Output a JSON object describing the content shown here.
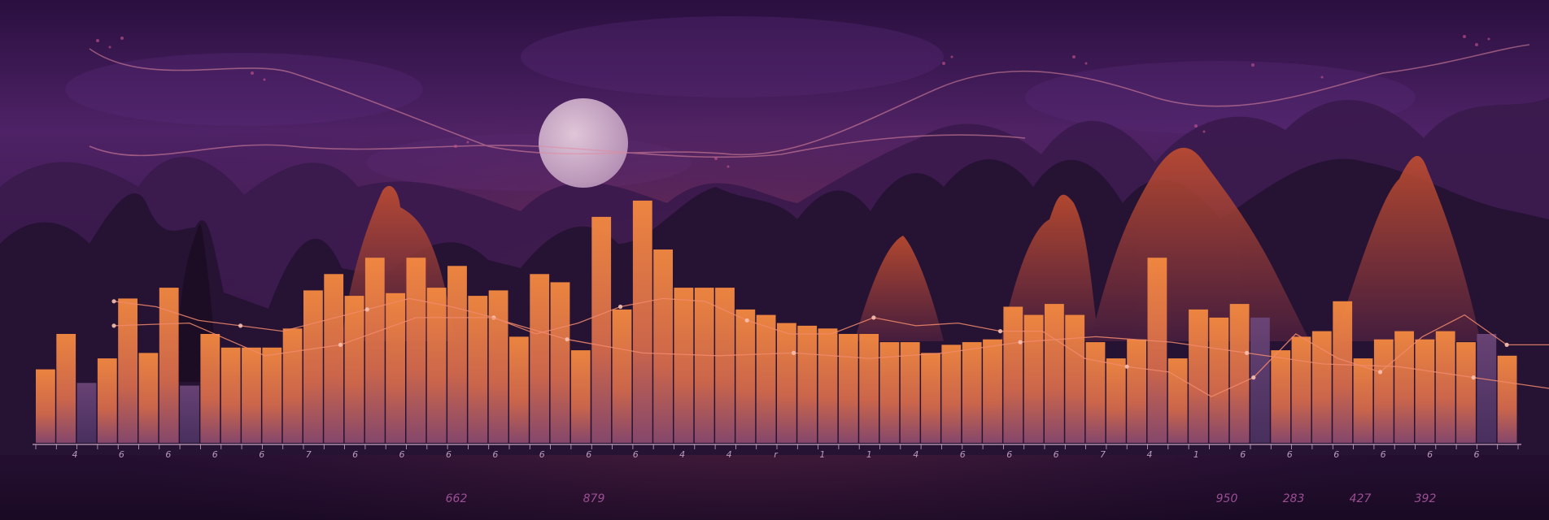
{
  "chart_data": {
    "type": "bar",
    "title": "",
    "xlabel": "",
    "ylabel": "",
    "ylim": [
      0,
      100
    ],
    "grid": false,
    "legend": "none",
    "values": [
      27,
      40,
      22,
      31,
      53,
      33,
      57,
      21,
      40,
      35,
      35,
      35,
      42,
      56,
      62,
      54,
      68,
      55,
      68,
      57,
      65,
      54,
      56,
      39,
      62,
      59,
      34,
      83,
      49,
      89,
      71,
      57,
      57,
      57,
      49,
      47,
      44,
      43,
      42,
      40,
      40,
      37,
      37,
      33,
      36,
      37,
      38,
      50,
      47,
      51,
      47,
      37,
      31,
      38,
      68,
      31,
      49,
      46,
      51,
      46,
      34,
      39,
      41,
      52,
      31,
      38,
      41,
      38,
      41,
      37,
      40,
      32
    ],
    "lines": [
      {
        "values": [
          52,
          50,
          45,
          43,
          41,
          45,
          49,
          53,
          50,
          46,
          40,
          44,
          50,
          53,
          52,
          45,
          40,
          40,
          46,
          43,
          44,
          41,
          41,
          31,
          28,
          26,
          17,
          24,
          40,
          31,
          26,
          39,
          47,
          36,
          36
        ]
      },
      {
        "values": [
          43,
          44,
          32,
          36,
          46,
          46,
          38,
          33,
          32,
          33,
          31,
          33,
          37,
          39,
          37,
          33,
          29,
          28,
          24,
          20
        ]
      }
    ],
    "tick_labels": [
      "4",
      "6",
      "6",
      "6",
      "6",
      "7",
      "6",
      "6",
      "6",
      "6",
      "6",
      "6",
      "6",
      "4",
      "4",
      "r",
      "1",
      "1",
      "4",
      "6",
      "6",
      "6",
      "7",
      "4",
      "1",
      "6",
      "6",
      "6",
      "6",
      "6",
      "6"
    ],
    "annotations": [
      "662",
      "879",
      "950",
      "283",
      "427",
      "392"
    ],
    "colors": {
      "bar_top": "#f5863f",
      "bar_bottom": "#8a4a6e",
      "bar_dim": "#5d3e6c",
      "line": "#f18a6c",
      "moon": "#d9b8cc",
      "sky": "#4e2266"
    }
  }
}
